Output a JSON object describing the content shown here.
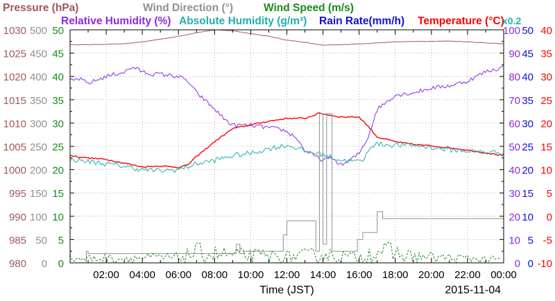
{
  "chart_data": {
    "type": "line",
    "legend": {
      "row1": [
        {
          "text": "Pressure (hPa)",
          "color": "#a0585a"
        },
        {
          "text": "Wind Direction (°)",
          "color": "#909090"
        },
        {
          "text": "Wind Speed (m/s)",
          "color": "#1a8a1a"
        }
      ],
      "row2": [
        {
          "text": "Relative Humidity (%)",
          "color": "#8a2be2"
        },
        {
          "text": "Absolute Humidity (g/m³)",
          "color": "#20b0b0"
        },
        {
          "text": "Rain Rate(mm/h)",
          "color": "#1010d0"
        },
        {
          "text": "Temperature (°C)",
          "color": "#ff0000"
        }
      ],
      "scale_note": {
        "text": "x0.2",
        "color": "#20b0b0"
      }
    },
    "xlabel": "Time (JST)",
    "date": "2015-11-04",
    "x_range_hours": [
      0,
      24
    ],
    "x_ticks": [
      {
        "h": 2,
        "label": "02:00"
      },
      {
        "h": 4,
        "label": "04:00"
      },
      {
        "h": 6,
        "label": "06:00"
      },
      {
        "h": 8,
        "label": "08:00"
      },
      {
        "h": 10,
        "label": "10:00"
      },
      {
        "h": 12,
        "label": "12:00"
      },
      {
        "h": 14,
        "label": "14:00"
      },
      {
        "h": 16,
        "label": "16:00"
      },
      {
        "h": 18,
        "label": "18:00"
      },
      {
        "h": 20,
        "label": "20:00"
      },
      {
        "h": 22,
        "label": "22:00"
      },
      {
        "h": 24,
        "label": "00:00"
      }
    ],
    "axes": {
      "pressure": {
        "color": "#a0585a",
        "range": [
          980,
          1030
        ],
        "labels": [
          "980",
          "985",
          "990",
          "995",
          "1000",
          "1005",
          "1010",
          "1015",
          "1020",
          "1025",
          "1030"
        ]
      },
      "wind_direction": {
        "color": "#909090",
        "range": [
          0,
          500
        ],
        "labels": [
          "0",
          "50",
          "100",
          "150",
          "200",
          "250",
          "300",
          "350",
          "400",
          "450",
          "500"
        ]
      },
      "wind_speed": {
        "color": "#1a8a1a",
        "range": [
          0,
          50
        ],
        "labels": [
          "0",
          "5",
          "10",
          "15",
          "20",
          "25",
          "30",
          "35",
          "40",
          "45",
          "50"
        ]
      },
      "humidity": {
        "color": "#8a2be2",
        "range": [
          0,
          100
        ],
        "labels": [
          "0",
          "10",
          "20",
          "30",
          "40",
          "50",
          "60",
          "70",
          "80",
          "90",
          "100"
        ]
      },
      "rain_rate": {
        "color": "#1010d0",
        "range": [
          0,
          50
        ],
        "labels": [
          "0",
          "5",
          "10",
          "15",
          "20",
          "25",
          "30",
          "35",
          "40",
          "45",
          "50"
        ]
      },
      "temperature": {
        "color": "#ff0000",
        "range": [
          -10,
          40
        ],
        "labels": [
          "-10",
          "-5",
          "0",
          "5",
          "10",
          "15",
          "20",
          "25",
          "30",
          "35",
          "40"
        ]
      }
    },
    "series": [
      {
        "key": "pressure",
        "axis": "pressure",
        "color": "#a0585a",
        "x": [
          0,
          1,
          2,
          3,
          4,
          5,
          6,
          7,
          8,
          9,
          10,
          11,
          12,
          13,
          14,
          15,
          16,
          17,
          18,
          19,
          20,
          21,
          22,
          23,
          24
        ],
        "y": [
          1026.8,
          1026.8,
          1026.9,
          1027.0,
          1027.4,
          1028.0,
          1028.6,
          1029.4,
          1030.0,
          1029.8,
          1029.2,
          1028.6,
          1027.8,
          1027.3,
          1026.7,
          1026.8,
          1027.0,
          1027.2,
          1027.4,
          1027.5,
          1027.5,
          1027.6,
          1027.4,
          1027.2,
          1027.0
        ]
      },
      {
        "key": "temperature",
        "axis": "temperature",
        "color": "#ff0000",
        "x": [
          0,
          1,
          2,
          3,
          4,
          5,
          6,
          6.5,
          7,
          8,
          9,
          10,
          11,
          12,
          13,
          13.8,
          14.5,
          15,
          16,
          16.5,
          17,
          18,
          19,
          20,
          21,
          22,
          23,
          24
        ],
        "y": [
          13.0,
          12.5,
          12.2,
          11.4,
          10.6,
          10.8,
          10.5,
          11.0,
          12.8,
          16.0,
          18.8,
          19.6,
          20.4,
          21.0,
          21.0,
          22.1,
          21.6,
          21.3,
          21.3,
          19.3,
          17.0,
          16.0,
          15.4,
          15.1,
          14.7,
          14.2,
          13.6,
          13.0
        ]
      },
      {
        "key": "relative_humidity",
        "axis": "humidity",
        "color": "#8a2be2",
        "x": [
          0,
          0.5,
          1,
          2,
          3,
          3.5,
          4,
          4.5,
          5,
          6,
          6.5,
          7,
          8,
          8.5,
          9,
          10,
          11,
          11.8,
          12.5,
          13,
          13.5,
          14,
          14.5,
          15,
          15.5,
          16,
          16.5,
          17,
          18,
          19,
          20,
          21,
          22,
          22.5,
          23,
          23.5,
          24
        ],
        "y": [
          78,
          79,
          77,
          80,
          82,
          84,
          82,
          81,
          81,
          80,
          78,
          73,
          66,
          62,
          59,
          59,
          58,
          57,
          54,
          48,
          46,
          44,
          45,
          42,
          44,
          47,
          54,
          66,
          72,
          73,
          75,
          76,
          78,
          80,
          82,
          83,
          84
        ]
      },
      {
        "key": "absolute_humidity",
        "axis": "humidity",
        "color": "#20b0b0",
        "x": [
          0,
          1,
          2,
          3,
          4,
          5,
          6,
          7,
          8,
          9,
          10,
          11,
          12,
          12.5,
          13,
          14,
          15,
          16,
          16.3,
          16.6,
          17,
          18,
          19,
          20,
          21,
          22,
          23,
          24
        ],
        "y": [
          44.5,
          43.5,
          42.5,
          41.5,
          40.0,
          39.5,
          40.0,
          42.5,
          44.0,
          46.0,
          47.0,
          49.0,
          50.5,
          49.5,
          48.0,
          46.5,
          44.0,
          43.5,
          44.5,
          50.0,
          51.0,
          50.5,
          50.5,
          49.5,
          48.5,
          48.0,
          47.5,
          47.5
        ]
      },
      {
        "key": "wind_direction",
        "axis": "wind_direction",
        "color": "#909090",
        "step": true,
        "x": [
          0.3,
          0.9,
          1.0,
          9.0,
          9.2,
          9.4,
          9.6,
          11.6,
          11.8,
          12.0,
          12.4,
          13.0,
          13.6,
          13.8,
          14.0,
          14.2,
          14.5,
          15.6,
          15.9,
          16.2,
          16.5,
          17.0,
          17.3,
          18.0,
          24.0
        ],
        "y": [
          0,
          25,
          20,
          20,
          40,
          20,
          25,
          25,
          60,
          90,
          90,
          90,
          25,
          320,
          40,
          320,
          25,
          25,
          50,
          65,
          65,
          110,
          95,
          95,
          95
        ]
      },
      {
        "key": "wind_speed",
        "axis": "wind_speed",
        "color": "#1a8a1a",
        "dashed": true,
        "noise": true,
        "x": [
          0,
          6,
          7,
          9,
          12,
          14,
          16,
          17,
          19,
          24
        ],
        "y": [
          0.8,
          1.0,
          2.0,
          1.5,
          1.2,
          1.6,
          1.0,
          2.5,
          1.2,
          0.6
        ]
      },
      {
        "key": "rain_rate",
        "axis": "rain_rate",
        "color": "#1010d0",
        "x": [
          0,
          24
        ],
        "y": [
          0,
          0
        ]
      }
    ]
  }
}
